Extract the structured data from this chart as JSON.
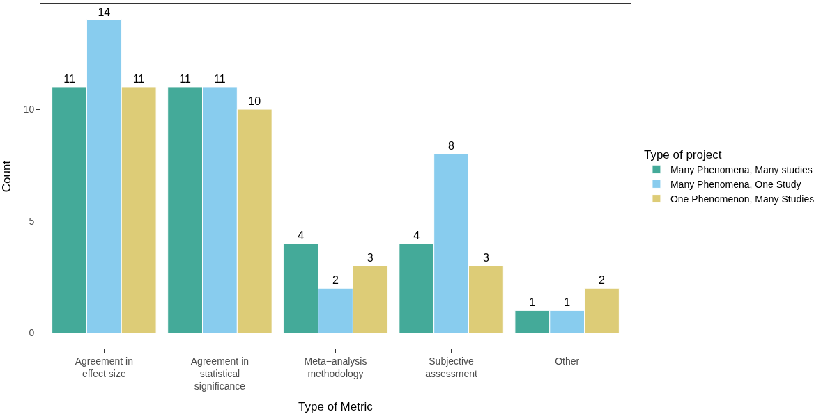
{
  "chart_data": {
    "type": "bar",
    "xlabel": "Type of Metric",
    "ylabel": "Count",
    "legend_title": "Type of project",
    "categories": [
      "Agreement in\neffect size",
      "Agreement in\nstatistical\nsignificance",
      "Meta−analysis\nmethodology",
      "Subjective\nassessment",
      "Other"
    ],
    "series": [
      {
        "name": "Many Phenomena, Many studies",
        "color": "#44aa99",
        "values": [
          11,
          11,
          4,
          4,
          1
        ]
      },
      {
        "name": "Many Phenomena, One Study",
        "color": "#88ccee",
        "values": [
          14,
          11,
          2,
          8,
          1
        ]
      },
      {
        "name": "One Phenomenon, Many Studies",
        "color": "#ddcc77",
        "values": [
          11,
          10,
          3,
          3,
          2
        ]
      }
    ],
    "ylim": [
      -0.7,
      14.7
    ],
    "yticks": [
      0,
      5,
      10
    ],
    "legend": "right",
    "data_labels": true
  }
}
